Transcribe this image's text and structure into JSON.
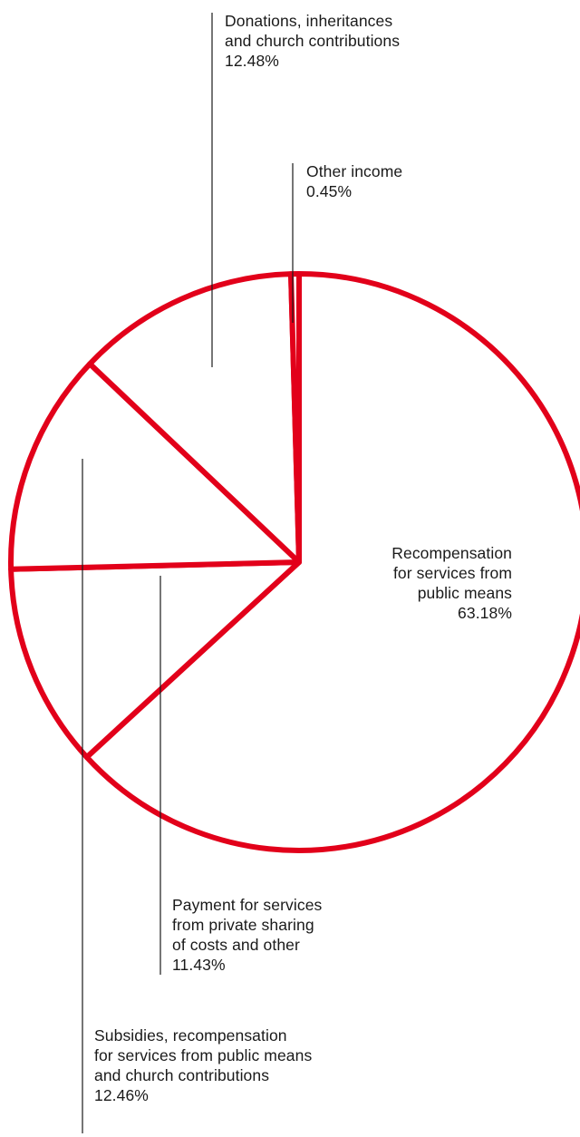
{
  "chart_data": {
    "type": "pie",
    "title": "",
    "colors": {
      "outline": "#e2001a",
      "leader": "#1a1a1a",
      "fill": "#ffffff"
    },
    "slices": [
      {
        "label_lines": [
          "Recompensation",
          "for services from",
          "public means"
        ],
        "value_text": "63.18%",
        "value": 63.18
      },
      {
        "label_lines": [
          "Payment for services",
          "from private sharing",
          "of costs and other"
        ],
        "value_text": "11.43%",
        "value": 11.43
      },
      {
        "label_lines": [
          "Subsidies, recompensation",
          "for services from public means",
          "and church contributions"
        ],
        "value_text": "12.46%",
        "value": 12.46
      },
      {
        "label_lines": [
          "Donations, inheritances",
          "and church contributions"
        ],
        "value_text": "12.48%",
        "value": 12.48
      },
      {
        "label_lines": [
          "Other income"
        ],
        "value_text": "0.45%",
        "value": 0.45
      }
    ]
  }
}
